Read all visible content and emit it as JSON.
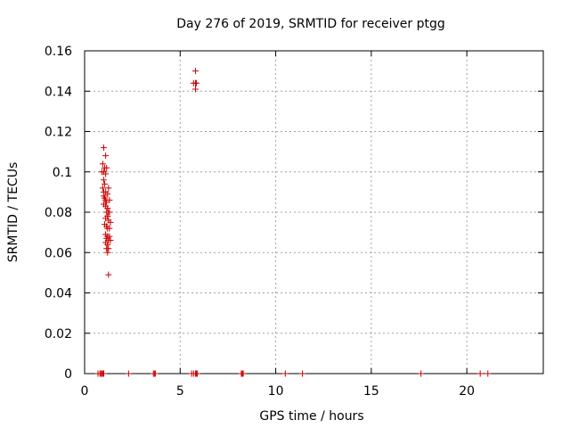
{
  "chart_data": {
    "type": "scatter",
    "title": "Day 276 of 2019, SRMTID for receiver ptgg",
    "xlabel": "GPS time / hours",
    "ylabel": "SRMTID / TECUs",
    "xlim": [
      0,
      24
    ],
    "ylim": [
      0,
      0.16
    ],
    "xticks": [
      0,
      5,
      10,
      15,
      20
    ],
    "xtick_labels": [
      "0",
      "5",
      "10",
      "15",
      "20"
    ],
    "yticks": [
      0,
      0.02,
      0.04,
      0.06,
      0.08,
      0.1,
      0.12,
      0.14,
      0.16
    ],
    "ytick_labels": [
      "0",
      "0.02",
      "0.04",
      "0.06",
      "0.08",
      "0.1",
      "0.12",
      "0.14",
      "0.16"
    ],
    "grid": true,
    "marker": "+",
    "color": "#cc0000",
    "series": [
      {
        "name": "SRMTID",
        "points": [
          [
            1.0,
            0.112
          ],
          [
            1.1,
            0.108
          ],
          [
            0.95,
            0.104
          ],
          [
            1.05,
            0.102
          ],
          [
            1.15,
            0.102
          ],
          [
            0.9,
            0.1
          ],
          [
            1.0,
            0.1
          ],
          [
            1.1,
            0.099
          ],
          [
            1.0,
            0.096
          ],
          [
            1.05,
            0.094
          ],
          [
            0.95,
            0.092
          ],
          [
            1.25,
            0.092
          ],
          [
            1.0,
            0.09
          ],
          [
            1.1,
            0.09
          ],
          [
            1.2,
            0.089
          ],
          [
            1.0,
            0.088
          ],
          [
            1.05,
            0.087
          ],
          [
            1.1,
            0.086
          ],
          [
            1.15,
            0.085
          ],
          [
            1.3,
            0.086
          ],
          [
            1.0,
            0.084
          ],
          [
            1.1,
            0.083
          ],
          [
            1.2,
            0.082
          ],
          [
            1.15,
            0.08
          ],
          [
            1.25,
            0.08
          ],
          [
            1.3,
            0.08
          ],
          [
            1.2,
            0.078
          ],
          [
            1.1,
            0.077
          ],
          [
            1.25,
            0.076
          ],
          [
            1.35,
            0.075
          ],
          [
            1.05,
            0.074
          ],
          [
            1.15,
            0.073
          ],
          [
            1.2,
            0.072
          ],
          [
            1.3,
            0.072
          ],
          [
            1.1,
            0.069
          ],
          [
            1.2,
            0.068
          ],
          [
            1.3,
            0.068
          ],
          [
            1.15,
            0.067
          ],
          [
            1.25,
            0.066
          ],
          [
            1.35,
            0.066
          ],
          [
            1.1,
            0.065
          ],
          [
            1.2,
            0.064
          ],
          [
            1.15,
            0.062
          ],
          [
            1.25,
            0.062
          ],
          [
            1.2,
            0.06
          ],
          [
            1.25,
            0.049
          ],
          [
            5.8,
            0.15
          ],
          [
            5.7,
            0.144
          ],
          [
            5.8,
            0.144
          ],
          [
            5.85,
            0.144
          ],
          [
            5.8,
            0.141
          ],
          [
            0.7,
            0
          ],
          [
            0.8,
            0
          ],
          [
            0.85,
            0
          ],
          [
            0.9,
            0
          ],
          [
            0.95,
            0
          ],
          [
            1.0,
            0
          ],
          [
            2.3,
            0
          ],
          [
            3.6,
            0
          ],
          [
            3.65,
            0
          ],
          [
            3.7,
            0
          ],
          [
            5.6,
            0
          ],
          [
            5.7,
            0
          ],
          [
            5.8,
            0
          ],
          [
            5.85,
            0
          ],
          [
            5.9,
            0
          ],
          [
            8.2,
            0
          ],
          [
            8.25,
            0
          ],
          [
            8.3,
            0
          ],
          [
            10.5,
            0
          ],
          [
            11.4,
            0
          ],
          [
            17.6,
            0
          ],
          [
            20.7,
            0
          ],
          [
            21.1,
            0
          ]
        ]
      }
    ]
  }
}
